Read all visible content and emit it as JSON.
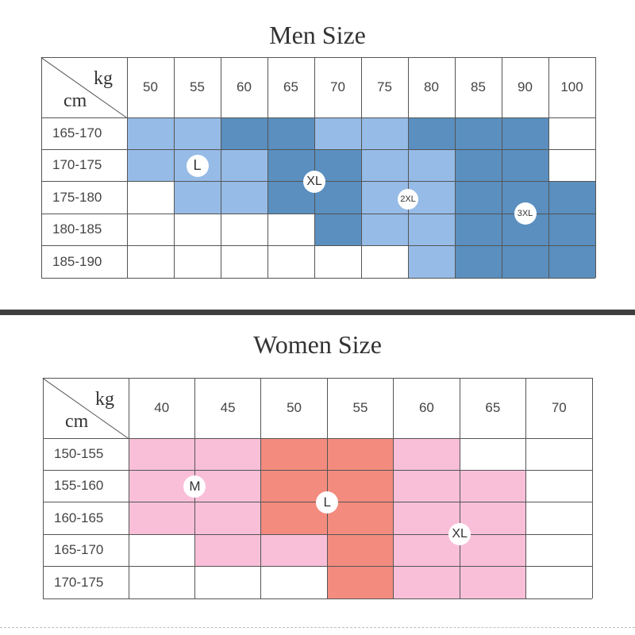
{
  "colors": {
    "men_light": "#96bbe6",
    "men_dark": "#5a8fbf",
    "women_light": "#f9bfd8",
    "women_salmon": "#f38b7f",
    "grid": "#555555"
  },
  "men": {
    "title": "Men Size",
    "corner_top": "kg",
    "corner_bottom": "cm",
    "columns": [
      "50",
      "55",
      "60",
      "65",
      "70",
      "75",
      "80",
      "85",
      "90",
      "100"
    ],
    "rows": [
      "165-170",
      "170-175",
      "175-180",
      "180-185",
      "185-190"
    ],
    "cell_fill": [
      [
        "L",
        "L",
        "D",
        "D",
        "L",
        "L",
        "D",
        "D",
        "D",
        "W"
      ],
      [
        "L",
        "L",
        "L",
        "D",
        "D",
        "L",
        "L",
        "D",
        "D",
        "W"
      ],
      [
        "W",
        "L",
        "L",
        "D",
        "D",
        "L",
        "L",
        "D",
        "D",
        "D"
      ],
      [
        "W",
        "W",
        "W",
        "W",
        "D",
        "L",
        "L",
        "D",
        "D",
        "D"
      ],
      [
        "W",
        "W",
        "W",
        "W",
        "W",
        "W",
        "L",
        "D",
        "D",
        "D"
      ]
    ],
    "badges": [
      {
        "label": "L",
        "col": 1.5,
        "row": 1.5,
        "size": 28,
        "font": 18
      },
      {
        "label": "XL",
        "col": 4.0,
        "row": 2.0,
        "size": 28,
        "font": 16
      },
      {
        "label": "2XL",
        "col": 6.0,
        "row": 2.55,
        "size": 26,
        "font": 11
      },
      {
        "label": "3XL",
        "col": 8.5,
        "row": 3.0,
        "size": 28,
        "font": 11
      }
    ]
  },
  "women": {
    "title": "Women Size",
    "corner_top": "kg",
    "corner_bottom": "cm",
    "columns": [
      "40",
      "45",
      "50",
      "55",
      "60",
      "65",
      "70"
    ],
    "rows": [
      "150-155",
      "155-160",
      "160-165",
      "165-170",
      "170-175"
    ],
    "cell_fill": [
      [
        "P",
        "P",
        "S",
        "S",
        "P",
        "W",
        "W"
      ],
      [
        "P",
        "P",
        "S",
        "S",
        "P",
        "P",
        "W"
      ],
      [
        "P",
        "P",
        "S",
        "S",
        "P",
        "P",
        "W"
      ],
      [
        "W",
        "P",
        "P",
        "S",
        "P",
        "P",
        "W"
      ],
      [
        "W",
        "W",
        "W",
        "S",
        "P",
        "P",
        "W"
      ]
    ],
    "badges": [
      {
        "label": "M",
        "col": 1.0,
        "row": 1.5,
        "size": 28,
        "font": 17
      },
      {
        "label": "L",
        "col": 3.0,
        "row": 2.0,
        "size": 28,
        "font": 17
      },
      {
        "label": "XL",
        "col": 5.0,
        "row": 3.0,
        "size": 28,
        "font": 16
      }
    ]
  }
}
